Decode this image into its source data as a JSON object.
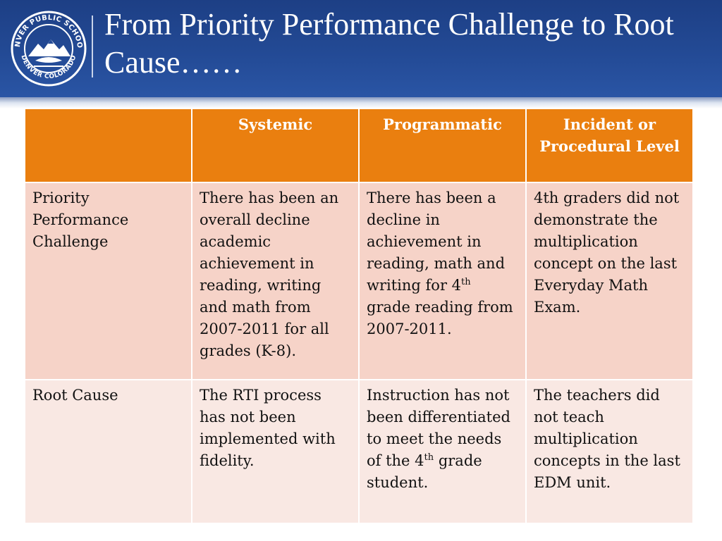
{
  "slide": {
    "title": "From Priority Performance Challenge to Root Cause……",
    "logo": {
      "icon": "denver-public-schools-seal",
      "ring_text_top": "DENVER PUBLIC SCHOOLS",
      "ring_text_bottom": "DENVER COLORADO"
    },
    "colors": {
      "header_blue": "#234a95",
      "table_header_orange": "#ea7f0f",
      "row_pink_dark": "#f6d3c8",
      "row_pink_light": "#f9e8e3"
    }
  },
  "table": {
    "columns": [
      "",
      "Systemic",
      "Programmatic",
      "Incident or Procedural Level"
    ],
    "rows": [
      {
        "label": "Priority Performance Challenge",
        "systemic": "There has been an overall decline academic achievement in reading, writing and math from 2007-2011 for all grades (K-8).",
        "programmatic_pre": "There has been a decline in achievement in reading, math and writing for 4",
        "programmatic_sup": "th",
        "programmatic_post": " grade reading from 2007-2011.",
        "incident": "4th graders did not demonstrate the multiplication concept on the last Everyday Math Exam."
      },
      {
        "label": "Root Cause",
        "systemic": "The RTI process has not been implemented with fidelity.",
        "programmatic_pre": "Instruction has not been differentiated to meet the needs of the 4",
        "programmatic_sup": "th",
        "programmatic_post": " grade student.",
        "incident": "The teachers did not teach multiplication concepts in the last EDM unit."
      }
    ]
  }
}
